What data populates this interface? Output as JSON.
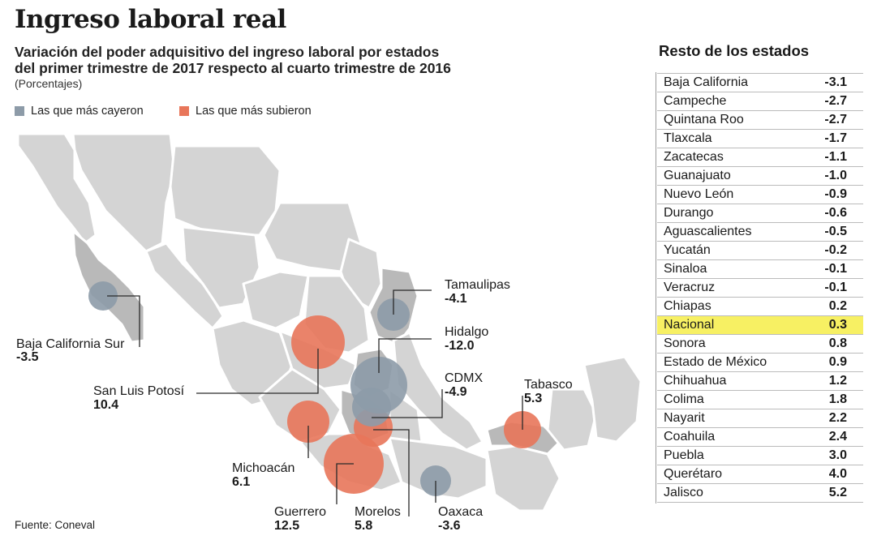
{
  "header": {
    "title": "Ingreso laboral real",
    "subtitle_line1": "Variación del poder adquisitivo del ingreso laboral por estados",
    "subtitle_line2": "del primer trimestre de 2017 respecto al cuarto trimestre de 2016",
    "units": "(Porcentajes)"
  },
  "legend": {
    "fell": "Las que más cayeron",
    "rose": "Las que más subieron"
  },
  "colors": {
    "fell": "#8d9ba8",
    "rose": "#e8765a",
    "land": "#d4d4d4",
    "land_dark": "#b9b9b9",
    "highlight": "#f7f063"
  },
  "source": "Fuente: Coneval",
  "chart_data": [
    {
      "type": "map",
      "title": "Ingreso laboral real",
      "highlighted_states": [
        {
          "name": "Baja California Sur",
          "value": "-3.5",
          "group": "fell"
        },
        {
          "name": "San Luis Potosí",
          "value": "10.4",
          "group": "rose"
        },
        {
          "name": "Michoacán",
          "value": "6.1",
          "group": "rose"
        },
        {
          "name": "Guerrero",
          "value": "12.5",
          "group": "rose"
        },
        {
          "name": "Morelos",
          "value": "5.8",
          "group": "rose"
        },
        {
          "name": "Oaxaca",
          "value": "-3.6",
          "group": "fell"
        },
        {
          "name": "CDMX",
          "value": "-4.9",
          "group": "fell"
        },
        {
          "name": "Hidalgo",
          "value": "-12.0",
          "group": "fell"
        },
        {
          "name": "Tamaulipas",
          "value": "-4.1",
          "group": "fell"
        },
        {
          "name": "Tabasco",
          "value": "5.3",
          "group": "rose"
        }
      ]
    },
    {
      "type": "table",
      "title": "Resto de los estados",
      "rows": [
        {
          "name": "Baja California",
          "value": "-3.1"
        },
        {
          "name": "Campeche",
          "value": "-2.7"
        },
        {
          "name": "Quintana Roo",
          "value": "-2.7"
        },
        {
          "name": "Tlaxcala",
          "value": "-1.7"
        },
        {
          "name": "Zacatecas",
          "value": "-1.1"
        },
        {
          "name": "Guanajuato",
          "value": "-1.0"
        },
        {
          "name": "Nuevo León",
          "value": "-0.9"
        },
        {
          "name": "Durango",
          "value": "-0.6"
        },
        {
          "name": "Aguascalientes",
          "value": "-0.5"
        },
        {
          "name": "Yucatán",
          "value": "-0.2"
        },
        {
          "name": "Sinaloa",
          "value": "-0.1"
        },
        {
          "name": "Veracruz",
          "value": "-0.1"
        },
        {
          "name": "Chiapas",
          "value": "0.2"
        },
        {
          "name": "Nacional",
          "value": "0.3",
          "highlight": true
        },
        {
          "name": "Sonora",
          "value": "0.8"
        },
        {
          "name": "Estado de México",
          "value": "0.9"
        },
        {
          "name": "Chihuahua",
          "value": "1.2"
        },
        {
          "name": "Colima",
          "value": "1.8"
        },
        {
          "name": "Nayarit",
          "value": "2.2"
        },
        {
          "name": "Coahuila",
          "value": "2.4"
        },
        {
          "name": "Puebla",
          "value": "3.0"
        },
        {
          "name": "Querétaro",
          "value": "4.0"
        },
        {
          "name": "Jalisco",
          "value": "5.2"
        }
      ]
    }
  ]
}
